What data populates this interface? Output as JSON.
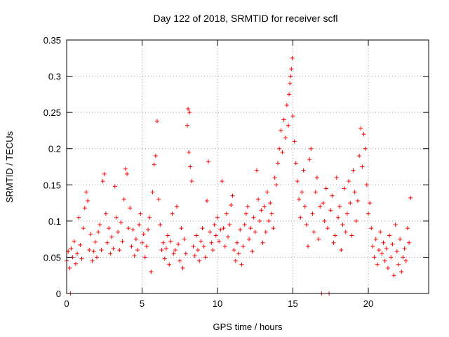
{
  "chart_data": {
    "type": "scatter",
    "title": "Day 122 of 2018, SRMTID for receiver scfl",
    "xlabel": "GPS time / hours",
    "ylabel": "SRMTID / TECUs",
    "xlim": [
      0,
      24
    ],
    "ylim": [
      0,
      0.35
    ],
    "x_ticks": [
      0,
      5,
      10,
      15,
      20
    ],
    "x_tick_labels": [
      "0",
      "5",
      "10",
      "15",
      "20"
    ],
    "y_ticks": [
      0,
      0.05,
      0.1,
      0.15,
      0.2,
      0.25,
      0.3,
      0.35
    ],
    "y_tick_labels": [
      "0",
      "0.05",
      "0.1",
      "0.15",
      "0.2",
      "0.25",
      "0.3",
      "0.35"
    ],
    "grid": true,
    "marker": "+",
    "color": "#ff0000",
    "series": [
      {
        "name": "SRMTID",
        "points": [
          [
            0.0,
            0.045
          ],
          [
            0.1,
            0.058
          ],
          [
            0.2,
            0.035
          ],
          [
            0.25,
            0.0
          ],
          [
            0.3,
            0.062
          ],
          [
            0.4,
            0.05
          ],
          [
            0.5,
            0.072
          ],
          [
            0.6,
            0.041
          ],
          [
            0.7,
            0.055
          ],
          [
            0.8,
            0.105
          ],
          [
            0.9,
            0.067
          ],
          [
            1.0,
            0.048
          ],
          [
            1.1,
            0.09
          ],
          [
            1.2,
            0.118
          ],
          [
            1.3,
            0.14
          ],
          [
            1.4,
            0.128
          ],
          [
            1.5,
            0.06
          ],
          [
            1.6,
            0.082
          ],
          [
            1.7,
            0.045
          ],
          [
            1.8,
            0.058
          ],
          [
            1.9,
            0.071
          ],
          [
            2.0,
            0.05
          ],
          [
            2.1,
            0.085
          ],
          [
            2.2,
            0.095
          ],
          [
            2.3,
            0.06
          ],
          [
            2.4,
            0.155
          ],
          [
            2.5,
            0.165
          ],
          [
            2.6,
            0.11
          ],
          [
            2.7,
            0.07
          ],
          [
            2.8,
            0.09
          ],
          [
            2.9,
            0.055
          ],
          [
            3.0,
            0.078
          ],
          [
            3.1,
            0.062
          ],
          [
            3.2,
            0.148
          ],
          [
            3.3,
            0.105
          ],
          [
            3.4,
            0.085
          ],
          [
            3.5,
            0.06
          ],
          [
            3.6,
            0.098
          ],
          [
            3.7,
            0.072
          ],
          [
            3.8,
            0.13
          ],
          [
            3.9,
            0.172
          ],
          [
            4.0,
            0.165
          ],
          [
            4.1,
            0.09
          ],
          [
            4.2,
            0.118
          ],
          [
            4.3,
            0.065
          ],
          [
            4.4,
            0.088
          ],
          [
            4.5,
            0.052
          ],
          [
            4.6,
            0.075
          ],
          [
            4.7,
            0.06
          ],
          [
            4.8,
            0.095
          ],
          [
            4.9,
            0.11
          ],
          [
            5.0,
            0.07
          ],
          [
            5.1,
            0.082
          ],
          [
            5.2,
            0.05
          ],
          [
            5.3,
            0.065
          ],
          [
            5.4,
            0.088
          ],
          [
            5.5,
            0.105
          ],
          [
            5.6,
            0.03
          ],
          [
            5.7,
            0.14
          ],
          [
            5.8,
            0.178
          ],
          [
            5.9,
            0.19
          ],
          [
            6.0,
            0.238
          ],
          [
            6.1,
            0.13
          ],
          [
            6.2,
            0.095
          ],
          [
            6.3,
            0.06
          ],
          [
            6.4,
            0.07
          ],
          [
            6.5,
            0.048
          ],
          [
            6.6,
            0.062
          ],
          [
            6.7,
            0.08
          ],
          [
            6.8,
            0.04
          ],
          [
            6.9,
            0.072
          ],
          [
            7.0,
            0.11
          ],
          [
            7.1,
            0.055
          ],
          [
            7.2,
            0.06
          ],
          [
            7.3,
            0.12
          ],
          [
            7.4,
            0.068
          ],
          [
            7.5,
            0.045
          ],
          [
            7.6,
            0.09
          ],
          [
            7.7,
            0.035
          ],
          [
            7.8,
            0.075
          ],
          [
            7.9,
            0.055
          ],
          [
            8.0,
            0.232
          ],
          [
            8.05,
            0.255
          ],
          [
            8.1,
            0.195
          ],
          [
            8.15,
            0.25
          ],
          [
            8.2,
            0.175
          ],
          [
            8.3,
            0.155
          ],
          [
            8.4,
            0.065
          ],
          [
            8.5,
            0.052
          ],
          [
            8.6,
            0.08
          ],
          [
            8.7,
            0.06
          ],
          [
            8.8,
            0.045
          ],
          [
            8.9,
            0.072
          ],
          [
            9.0,
            0.09
          ],
          [
            9.1,
            0.065
          ],
          [
            9.2,
            0.05
          ],
          [
            9.3,
            0.128
          ],
          [
            9.4,
            0.182
          ],
          [
            9.5,
            0.085
          ],
          [
            9.6,
            0.07
          ],
          [
            9.7,
            0.06
          ],
          [
            9.8,
            0.095
          ],
          [
            9.9,
            0.08
          ],
          [
            10.0,
            0.105
          ],
          [
            10.1,
            0.072
          ],
          [
            10.2,
            0.088
          ],
          [
            10.3,
            0.155
          ],
          [
            10.4,
            0.09
          ],
          [
            10.5,
            0.065
          ],
          [
            10.6,
            0.11
          ],
          [
            10.7,
            0.078
          ],
          [
            10.8,
            0.095
          ],
          [
            10.9,
            0.122
          ],
          [
            11.0,
            0.135
          ],
          [
            11.1,
            0.06
          ],
          [
            11.2,
            0.045
          ],
          [
            11.3,
            0.07
          ],
          [
            11.4,
            0.055
          ],
          [
            11.5,
            0.088
          ],
          [
            11.6,
            0.04
          ],
          [
            11.7,
            0.065
          ],
          [
            11.8,
            0.095
          ],
          [
            11.9,
            0.11
          ],
          [
            12.0,
            0.12
          ],
          [
            12.1,
            0.075
          ],
          [
            12.2,
            0.09
          ],
          [
            12.3,
            0.058
          ],
          [
            12.4,
            0.105
          ],
          [
            12.5,
            0.085
          ],
          [
            12.6,
            0.17
          ],
          [
            12.7,
            0.13
          ],
          [
            12.8,
            0.1
          ],
          [
            12.9,
            0.115
          ],
          [
            13.0,
            0.07
          ],
          [
            13.1,
            0.12
          ],
          [
            13.2,
            0.085
          ],
          [
            13.3,
            0.14
          ],
          [
            13.4,
            0.1
          ],
          [
            13.5,
            0.125
          ],
          [
            13.6,
            0.11
          ],
          [
            13.7,
            0.09
          ],
          [
            13.8,
            0.16
          ],
          [
            13.9,
            0.15
          ],
          [
            14.0,
            0.18
          ],
          [
            14.1,
            0.2
          ],
          [
            14.2,
            0.225
          ],
          [
            14.3,
            0.195
          ],
          [
            14.4,
            0.24
          ],
          [
            14.5,
            0.215
          ],
          [
            14.6,
            0.26
          ],
          [
            14.7,
            0.232
          ],
          [
            14.75,
            0.275
          ],
          [
            14.8,
            0.29
          ],
          [
            14.85,
            0.3
          ],
          [
            14.9,
            0.31
          ],
          [
            14.95,
            0.325
          ],
          [
            15.0,
            0.245
          ],
          [
            15.1,
            0.21
          ],
          [
            15.2,
            0.18
          ],
          [
            15.3,
            0.155
          ],
          [
            15.4,
            0.13
          ],
          [
            15.5,
            0.105
          ],
          [
            15.6,
            0.14
          ],
          [
            15.7,
            0.17
          ],
          [
            15.8,
            0.12
          ],
          [
            15.9,
            0.095
          ],
          [
            16.0,
            0.065
          ],
          [
            16.1,
            0.185
          ],
          [
            16.2,
            0.2
          ],
          [
            16.3,
            0.11
          ],
          [
            16.4,
            0.085
          ],
          [
            16.5,
            0.14
          ],
          [
            16.6,
            0.16
          ],
          [
            16.7,
            0.075
          ],
          [
            16.8,
            0.12
          ],
          [
            16.9,
            0.0
          ],
          [
            17.0,
            0.125
          ],
          [
            17.1,
            0.1
          ],
          [
            17.2,
            0.145
          ],
          [
            17.3,
            0.09
          ],
          [
            17.4,
            0.0
          ],
          [
            17.5,
            0.115
          ],
          [
            17.6,
            0.135
          ],
          [
            17.7,
            0.07
          ],
          [
            17.8,
            0.08
          ],
          [
            17.9,
            0.16
          ],
          [
            18.0,
            0.105
          ],
          [
            18.1,
            0.12
          ],
          [
            18.2,
            0.06
          ],
          [
            18.3,
            0.095
          ],
          [
            18.4,
            0.145
          ],
          [
            18.5,
            0.085
          ],
          [
            18.6,
            0.11
          ],
          [
            18.7,
            0.155
          ],
          [
            18.8,
            0.125
          ],
          [
            18.9,
            0.08
          ],
          [
            19.0,
            0.17
          ],
          [
            19.1,
            0.14
          ],
          [
            19.2,
            0.1
          ],
          [
            19.3,
            0.128
          ],
          [
            19.4,
            0.19
          ],
          [
            19.5,
            0.228
          ],
          [
            19.6,
            0.175
          ],
          [
            19.7,
            0.22
          ],
          [
            19.8,
            0.2
          ],
          [
            19.9,
            0.15
          ],
          [
            20.0,
            0.11
          ],
          [
            20.1,
            0.125
          ],
          [
            20.2,
            0.09
          ],
          [
            20.3,
            0.065
          ],
          [
            20.4,
            0.05
          ],
          [
            20.5,
            0.075
          ],
          [
            20.6,
            0.04
          ],
          [
            20.7,
            0.06
          ],
          [
            20.8,
            0.085
          ],
          [
            20.9,
            0.055
          ],
          [
            21.0,
            0.07
          ],
          [
            21.1,
            0.045
          ],
          [
            21.2,
            0.062
          ],
          [
            21.3,
            0.035
          ],
          [
            21.4,
            0.08
          ],
          [
            21.5,
            0.05
          ],
          [
            21.6,
            0.068
          ],
          [
            21.7,
            0.025
          ],
          [
            21.8,
            0.095
          ],
          [
            21.9,
            0.058
          ],
          [
            22.0,
            0.04
          ],
          [
            22.1,
            0.075
          ],
          [
            22.2,
            0.03
          ],
          [
            22.3,
            0.05
          ],
          [
            22.4,
            0.062
          ],
          [
            22.5,
            0.045
          ],
          [
            22.6,
            0.09
          ],
          [
            22.7,
            0.07
          ],
          [
            22.8,
            0.132
          ]
        ]
      }
    ]
  }
}
